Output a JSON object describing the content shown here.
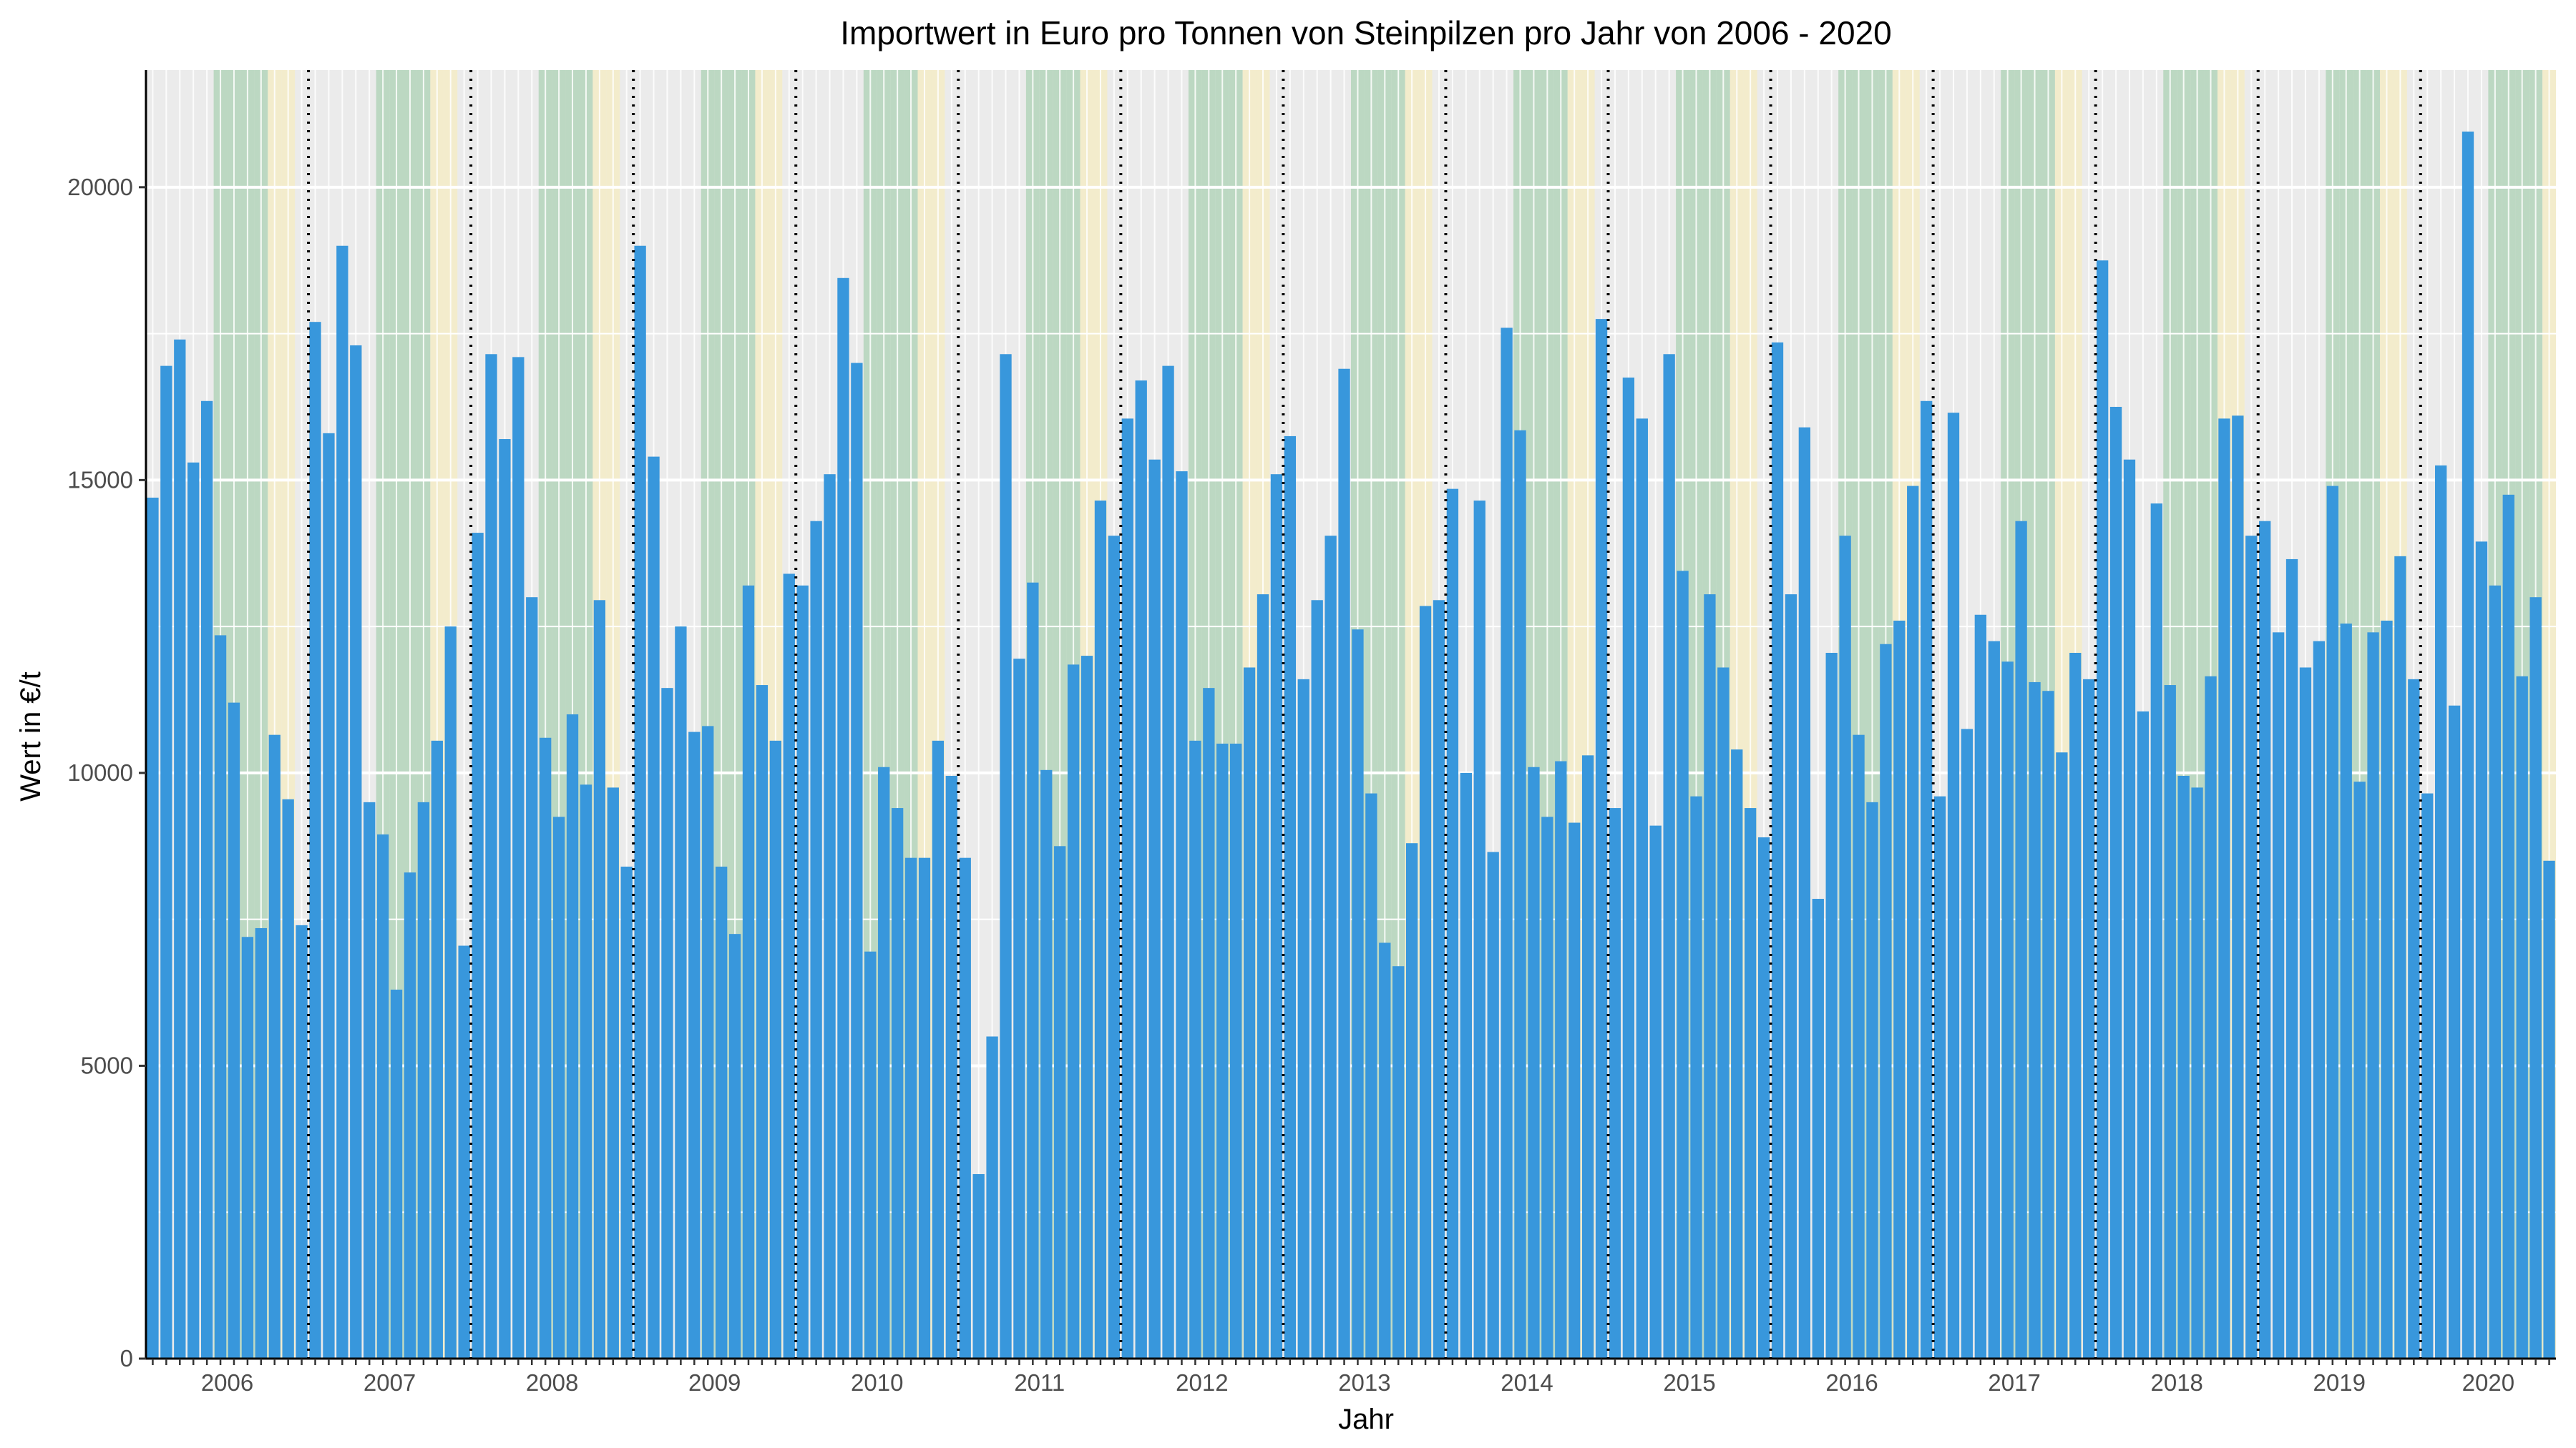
{
  "chart_data": {
    "type": "bar",
    "title": "Importwert in Euro pro Tonnen von Steinpilzen pro Jahr von 2006 - 2020",
    "xlabel": "Jahr",
    "ylabel": "Wert in €/t",
    "ylim": [
      0,
      22000
    ],
    "y_ticks": [
      0,
      5000,
      10000,
      15000,
      20000
    ],
    "x_tick_labels": [
      "2006",
      "2007",
      "2008",
      "2009",
      "2010",
      "2011",
      "2012",
      "2013",
      "2014",
      "2015",
      "2016",
      "2017",
      "2018",
      "2019",
      "2020"
    ],
    "bar_color": "#3897dc",
    "panel_background": "#ebebeb",
    "shading": {
      "green_months": [
        6,
        7,
        8,
        9
      ],
      "yellow_months": [
        10,
        11
      ],
      "green_color": "#a8d0b0",
      "yellow_color": "#f5ecc4"
    },
    "year_separators": "dotted vertical line at each year boundary",
    "grid": true,
    "series": [
      {
        "values": [
          14700,
          16950,
          17400,
          15300,
          16350,
          12350,
          11200,
          7200,
          7350,
          10650,
          9550,
          7400,
          17700,
          15800,
          19000,
          17300,
          9500,
          8950,
          6300,
          8300,
          9500,
          10550,
          12500,
          7050,
          14100,
          17150,
          15700,
          17100,
          13000,
          10600,
          9250,
          11000,
          9800,
          12950,
          9750,
          8400,
          19000,
          15400,
          11450,
          12500,
          10700,
          10800,
          8400,
          7250,
          13200,
          11500,
          10550,
          13400,
          13200,
          14300,
          15100,
          18450,
          17000,
          6950,
          10100,
          9400,
          8550,
          8550,
          10550,
          9950,
          8550,
          3150,
          5500,
          17150,
          11950,
          13250,
          10050,
          8750,
          11850,
          12000,
          14650,
          14050,
          16050,
          16700,
          15350,
          16950,
          15150,
          10550,
          11450,
          10500,
          10500,
          11800,
          13050,
          15100,
          15750,
          11600,
          12950,
          14050,
          16900,
          12450,
          9650,
          7100,
          6700,
          8800,
          12850,
          12950,
          14850,
          10000,
          14650,
          8650,
          17600,
          15850,
          10100,
          9250,
          10200,
          9150,
          10300,
          17750,
          9400,
          16750,
          16050,
          9100,
          17150,
          13450,
          9600,
          13050,
          11800,
          10400,
          9400,
          8900,
          17350,
          13050,
          15900,
          7850,
          12050,
          14050,
          10650,
          9500,
          12200,
          12600,
          14900,
          16350,
          9600,
          16150,
          10750,
          12700,
          12250,
          11900,
          14300,
          11550,
          11400,
          10350,
          12050,
          11600,
          18750,
          16250,
          15350,
          11050,
          14600,
          11500,
          9950,
          9750,
          11650,
          16050,
          16100,
          14050,
          14300,
          12400,
          13650,
          11800,
          12250,
          14900,
          12550,
          9850,
          12400,
          12600,
          13700,
          11600,
          9650,
          15250,
          11150,
          20950,
          13950,
          13200,
          14750,
          11650,
          13000,
          8500
        ]
      }
    ]
  }
}
